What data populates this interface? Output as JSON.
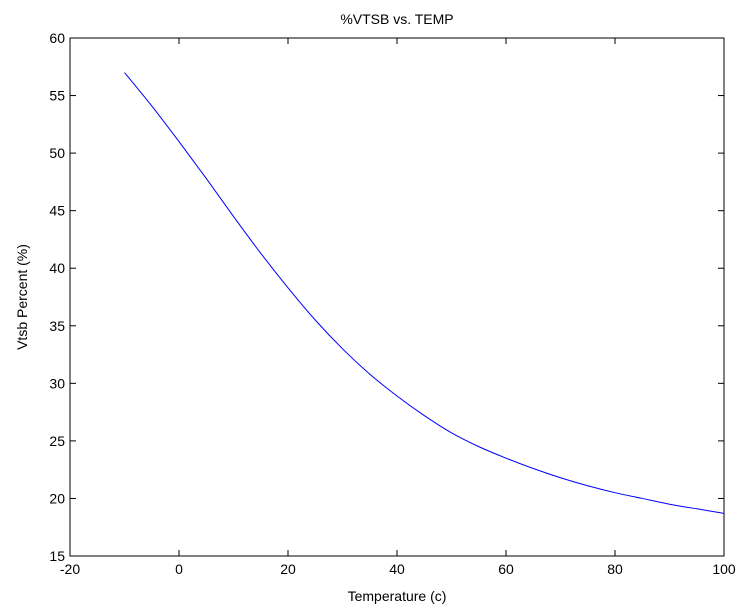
{
  "chart_data": {
    "type": "line",
    "title": "%VTSB vs. TEMP",
    "xlabel": "Temperature (c)",
    "ylabel": "Vtsb Percent (%)",
    "xlim": [
      -20,
      100
    ],
    "ylim": [
      15,
      60
    ],
    "xticks": [
      -20,
      0,
      20,
      40,
      60,
      80,
      100
    ],
    "yticks": [
      15,
      20,
      25,
      30,
      35,
      40,
      45,
      50,
      55,
      60
    ],
    "grid": false,
    "series": [
      {
        "color": "#0000ff",
        "x": [
          -10,
          -5,
          0,
          5,
          10,
          15,
          20,
          25,
          30,
          35,
          40,
          45,
          50,
          55,
          60,
          65,
          70,
          75,
          80,
          85,
          90,
          95,
          100
        ],
        "y": [
          57.0,
          54.1,
          51.0,
          47.8,
          44.5,
          41.3,
          38.3,
          35.5,
          33.0,
          30.8,
          28.9,
          27.2,
          25.7,
          24.5,
          23.5,
          22.6,
          21.8,
          21.1,
          20.5,
          20.0,
          19.5,
          19.1,
          18.7
        ]
      }
    ]
  }
}
